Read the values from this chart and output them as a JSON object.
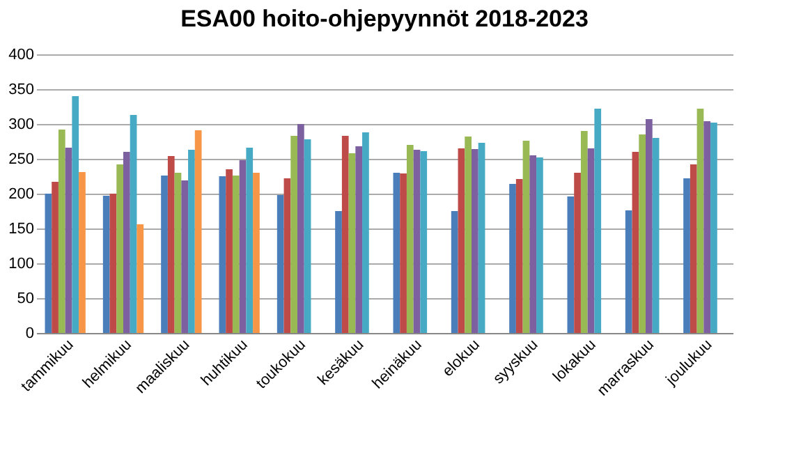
{
  "chart_data": {
    "type": "bar",
    "title": "ESA00 hoito-ohjepyynnöt 2018-2023",
    "categories": [
      "tammikuu",
      "helmikuu",
      "maaliskuu",
      "huhtikuu",
      "toukokuu",
      "kesäkuu",
      "heinäkuu",
      "elokuu",
      "syyskuu",
      "lokakuu",
      "marraskuu",
      "joulukuu"
    ],
    "series": [
      {
        "color": "#4a7ebb",
        "values": [
          200,
          197,
          226,
          225,
          198,
          175,
          230,
          175,
          214,
          196,
          176,
          222
        ]
      },
      {
        "color": "#be4b48",
        "values": [
          217,
          200,
          254,
          235,
          222,
          283,
          229,
          265,
          221,
          230,
          260,
          242
        ]
      },
      {
        "color": "#98b954",
        "values": [
          292,
          242,
          230,
          226,
          283,
          258,
          270,
          282,
          276,
          290,
          285,
          322
        ]
      },
      {
        "color": "#7d60a0",
        "values": [
          266,
          260,
          219,
          248,
          300,
          268,
          263,
          264,
          255,
          265,
          307,
          304
        ]
      },
      {
        "color": "#46aac5",
        "values": [
          340,
          313,
          263,
          266,
          278,
          288,
          261,
          273,
          252,
          322,
          280,
          302
        ]
      },
      {
        "color": "#f79646",
        "values": [
          231,
          156,
          291,
          230,
          null,
          null,
          null,
          null,
          null,
          null,
          null,
          null
        ]
      }
    ],
    "ylim": [
      0,
      400
    ],
    "yticks": [
      0,
      50,
      100,
      150,
      200,
      250,
      300,
      350,
      400
    ],
    "grid": "y"
  }
}
